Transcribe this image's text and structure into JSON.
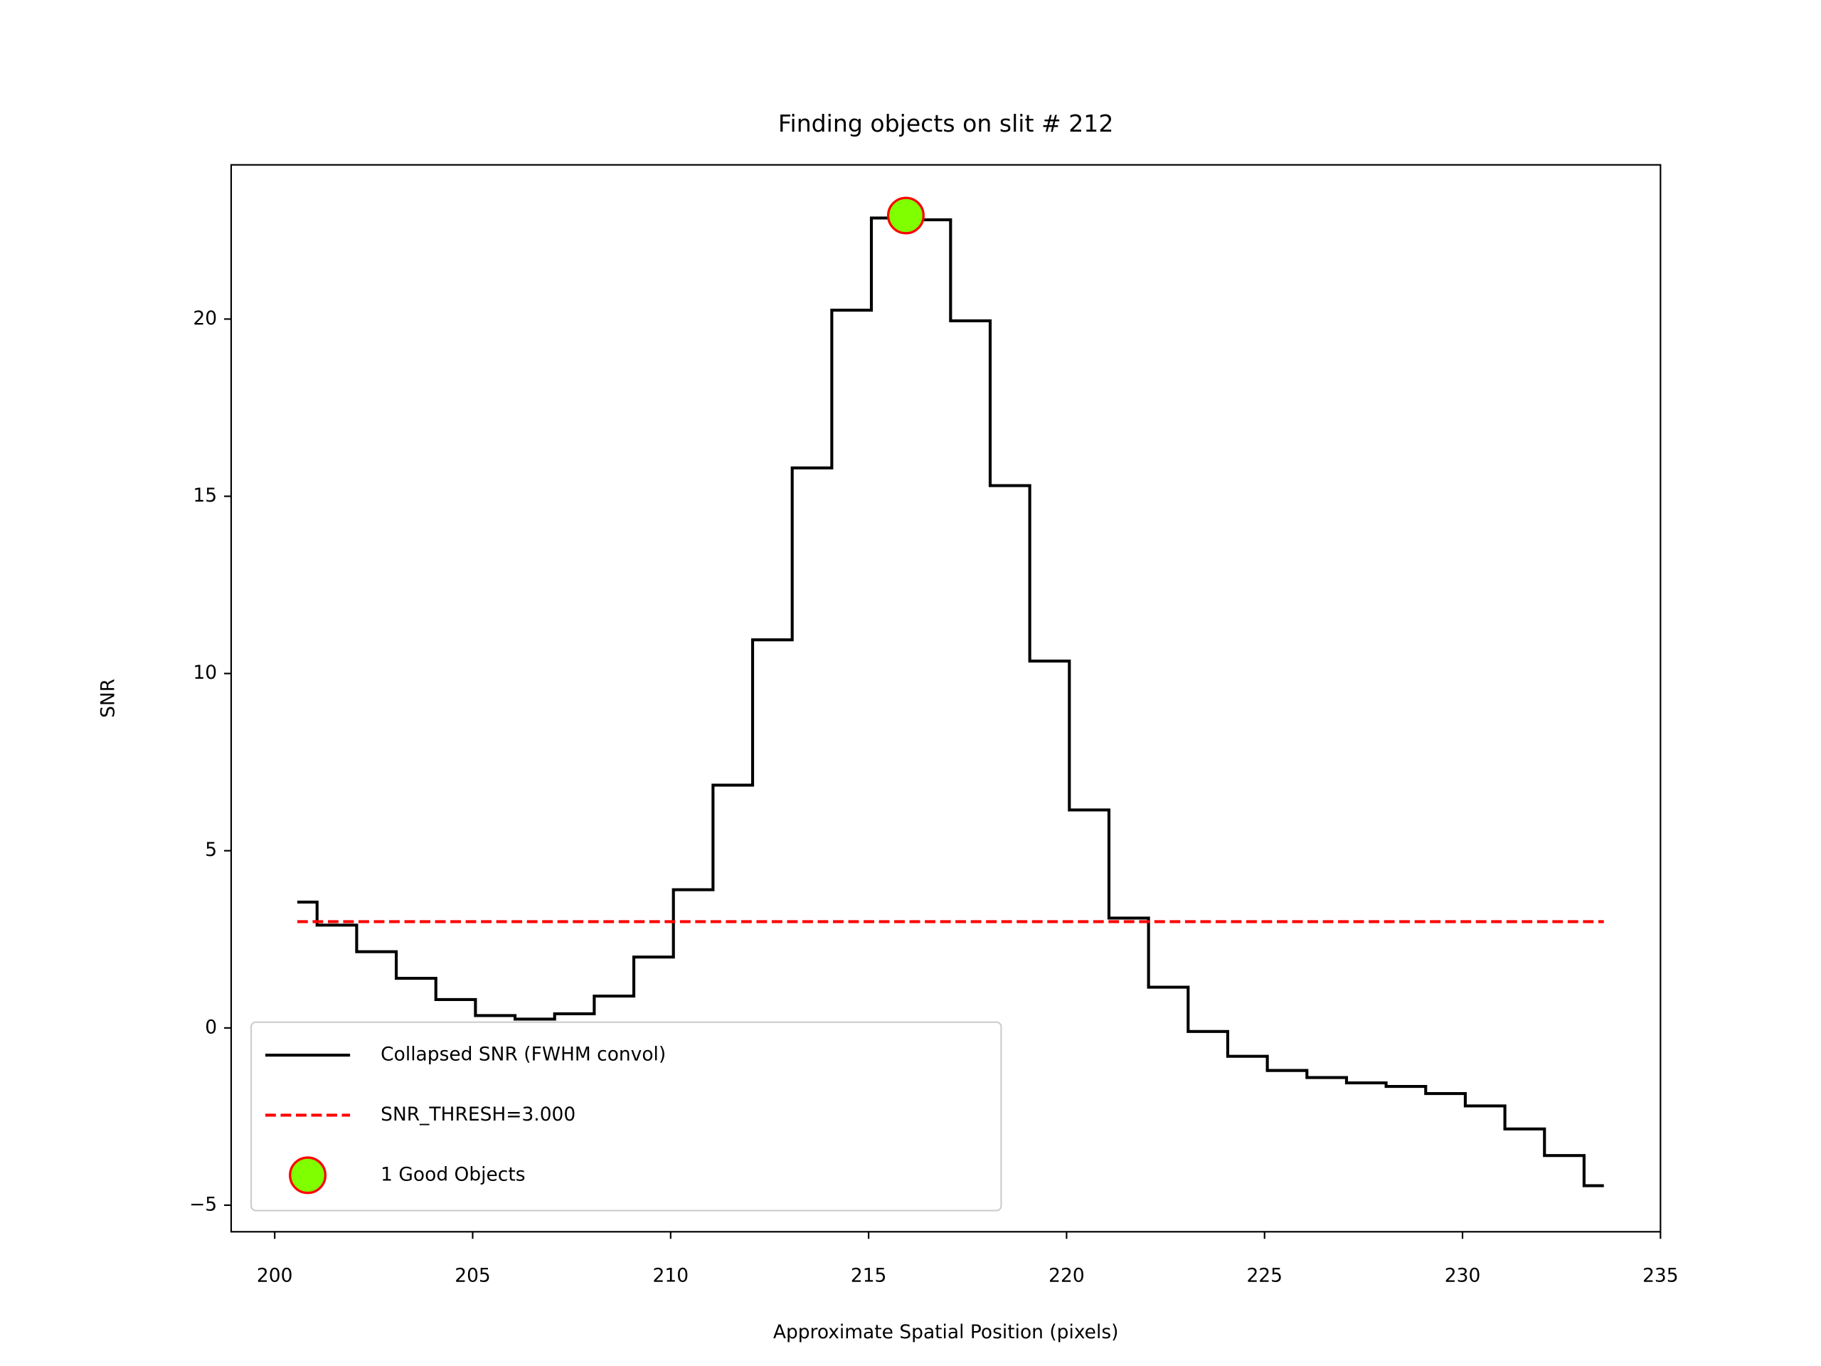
{
  "chart_data": {
    "type": "step",
    "title": "Finding objects on slit # 212",
    "xlabel": "Approximate Spatial Position (pixels)",
    "ylabel": "SNR",
    "xlim": [
      198.9,
      235.0
    ],
    "ylim": [
      -5.75,
      24.35
    ],
    "xticks": [
      200,
      205,
      210,
      215,
      220,
      225,
      230,
      235
    ],
    "yticks": [
      {
        "value": -5,
        "label": "−5"
      },
      0,
      5,
      10,
      15,
      20
    ],
    "legend": "lower left",
    "series": [
      {
        "name": "Collapsed SNR (FWHM convol)",
        "color": "#000000",
        "style": "steps-mid",
        "x": [
          200.57,
          201.57,
          202.57,
          203.57,
          204.57,
          205.57,
          206.57,
          207.57,
          208.57,
          209.57,
          210.57,
          211.57,
          212.57,
          213.57,
          214.57,
          215.57,
          216.57,
          217.57,
          218.57,
          219.57,
          220.57,
          221.57,
          222.57,
          223.57,
          224.57,
          225.57,
          226.57,
          227.57,
          228.57,
          229.57,
          230.57,
          231.57,
          232.57,
          233.57
        ],
        "values": [
          3.55,
          2.9,
          2.15,
          1.4,
          0.8,
          0.35,
          0.25,
          0.4,
          0.9,
          2.0,
          3.9,
          6.85,
          10.95,
          15.8,
          20.25,
          22.85,
          22.8,
          19.95,
          15.3,
          10.35,
          6.15,
          3.1,
          1.15,
          -0.1,
          -0.8,
          -1.2,
          -1.4,
          -1.55,
          -1.65,
          -1.85,
          -2.2,
          -2.85,
          -3.6,
          -4.45
        ]
      },
      {
        "name": "SNR_THRESH=3.000",
        "color": "#ff0000",
        "style": "dashed",
        "x": [
          200.57,
          233.57
        ],
        "values": [
          3,
          3
        ]
      },
      {
        "name": "1 Good Objects",
        "color": "#7fff00",
        "edgecolor": "#ff0000",
        "style": "marker",
        "x": [
          215.94
        ],
        "values": [
          22.92
        ]
      }
    ]
  }
}
